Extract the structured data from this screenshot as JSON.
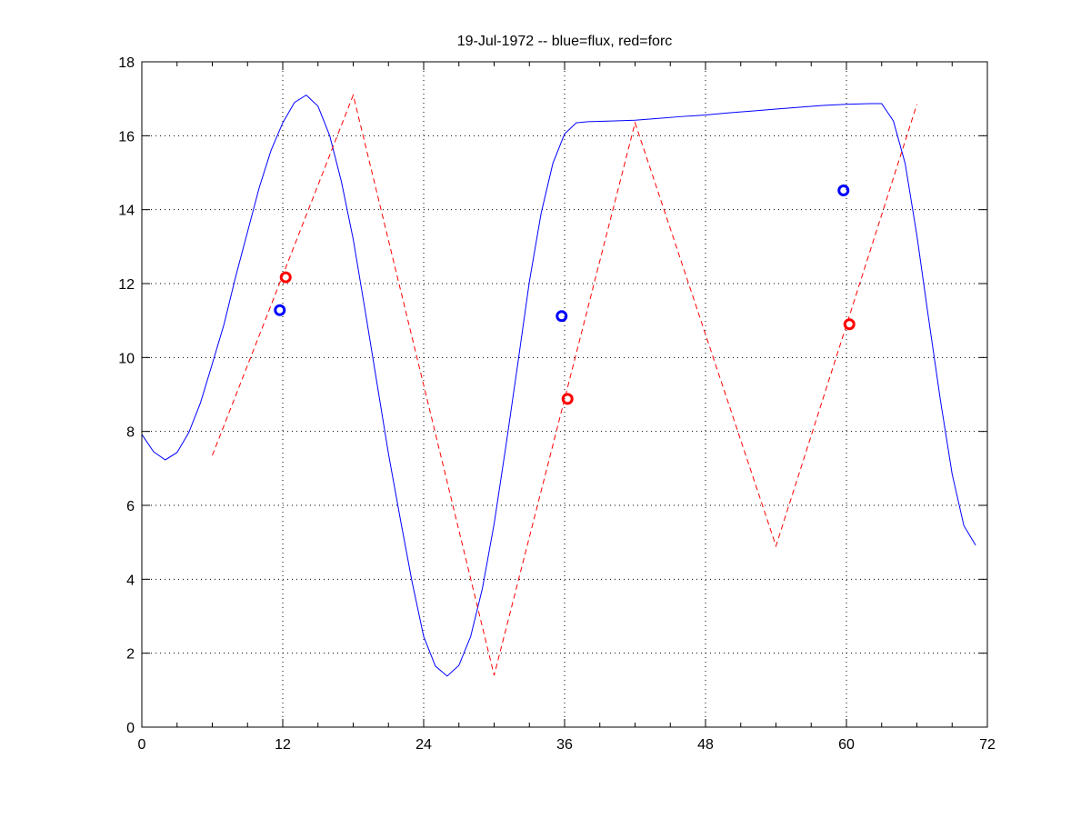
{
  "chart_data": {
    "type": "line",
    "title": "19-Jul-1972 -- blue=flux, red=forc",
    "xlabel": "",
    "ylabel": "",
    "xlim": [
      0,
      72
    ],
    "ylim": [
      0,
      18
    ],
    "xticks": [
      0,
      12,
      24,
      36,
      48,
      60,
      72
    ],
    "yticks": [
      0,
      2,
      4,
      6,
      8,
      10,
      12,
      14,
      16,
      18
    ],
    "grid": true,
    "series": [
      {
        "name": "flux",
        "color": "#0000ff",
        "style": "solid",
        "x": [
          0,
          1,
          2,
          3,
          4,
          5,
          6,
          7,
          8,
          9,
          10,
          11,
          12,
          13,
          14,
          15,
          16,
          17,
          18,
          19,
          20,
          21,
          22,
          23,
          24,
          25,
          26,
          27,
          28,
          29,
          30,
          31,
          32,
          33,
          34,
          35,
          36,
          37,
          38,
          40,
          42,
          44,
          46,
          48,
          50,
          52,
          54,
          56,
          58,
          60,
          61,
          62,
          63,
          64,
          65,
          66,
          67,
          68,
          69,
          70,
          71
        ],
        "y": [
          7.92,
          7.45,
          7.23,
          7.43,
          7.97,
          8.78,
          9.83,
          10.9,
          12.2,
          13.4,
          14.6,
          15.6,
          16.35,
          16.9,
          17.1,
          16.8,
          16.0,
          14.75,
          13.2,
          11.3,
          9.35,
          7.4,
          5.65,
          3.95,
          2.45,
          1.65,
          1.38,
          1.67,
          2.45,
          3.75,
          5.5,
          7.6,
          9.8,
          12.05,
          13.9,
          15.25,
          16.05,
          16.35,
          16.38,
          16.4,
          16.42,
          16.47,
          16.52,
          16.56,
          16.62,
          16.67,
          16.72,
          16.77,
          16.82,
          16.85,
          16.86,
          16.87,
          16.87,
          16.4,
          15.25,
          13.3,
          11.05,
          8.85,
          6.85,
          5.45,
          4.92
        ]
      },
      {
        "name": "forc",
        "color": "#ff0000",
        "style": "dashed",
        "x": [
          6,
          18,
          30,
          42,
          54,
          66
        ],
        "y": [
          7.35,
          17.1,
          1.4,
          16.35,
          4.9,
          16.85
        ]
      }
    ],
    "markers": [
      {
        "name": "flux-obs",
        "color": "#0000ff",
        "x": [
          11.75,
          35.75,
          59.75
        ],
        "y": [
          11.28,
          11.12,
          14.52
        ]
      },
      {
        "name": "forc-obs",
        "color": "#ff0000",
        "x": [
          12.25,
          36.25,
          60.25
        ],
        "y": [
          12.17,
          8.88,
          10.9
        ]
      }
    ]
  }
}
